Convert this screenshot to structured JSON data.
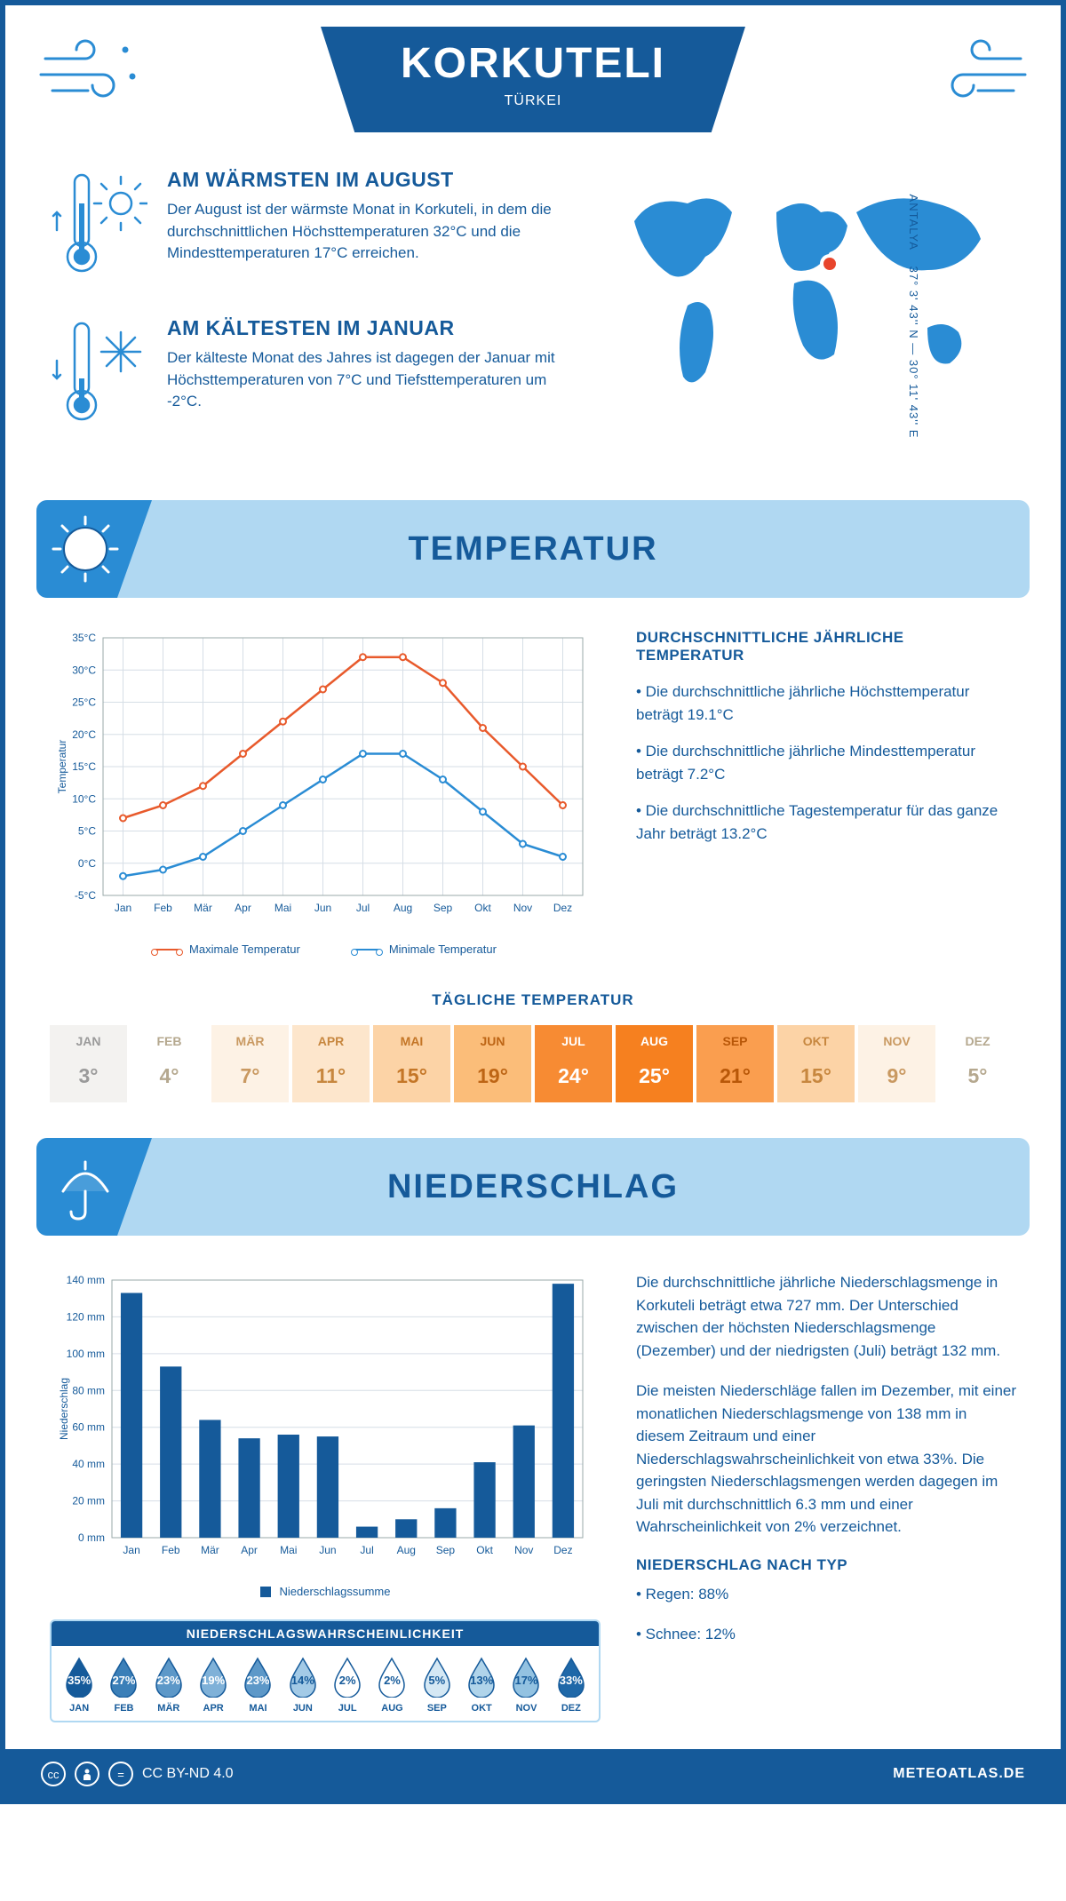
{
  "colors": {
    "primary": "#155a9a",
    "accent": "#2a8cd4",
    "light": "#b0d8f2",
    "max_line": "#e85a2c",
    "min_line": "#2a8cd4",
    "bg": "#ffffff",
    "grid": "#d6dee6"
  },
  "header": {
    "title": "KORKUTELI",
    "country": "TÜRKEI"
  },
  "intro": {
    "warm_title": "AM WÄRMSTEN IM AUGUST",
    "warm_text": "Der August ist der wärmste Monat in Korkuteli, in dem die durchschnittlichen Höchsttemperaturen 32°C und die Mindesttemperaturen 17°C erreichen.",
    "cold_title": "AM KÄLTESTEN IM JANUAR",
    "cold_text": "Der kälteste Monat des Jahres ist dagegen der Januar mit Höchsttemperaturen von 7°C und Tiefsttemperaturen um -2°C.",
    "coords": "37° 3' 43'' N — 30° 11' 43'' E",
    "region": "ANTALYA"
  },
  "temp_section": {
    "title": "TEMPERATUR",
    "info_title": "DURCHSCHNITTLICHE JÄHRLICHE TEMPERATUR",
    "bullet1": "• Die durchschnittliche jährliche Höchsttemperatur beträgt 19.1°C",
    "bullet2": "• Die durchschnittliche jährliche Mindesttemperatur beträgt 7.2°C",
    "bullet3": "• Die durchschnittliche Tagestemperatur für das ganze Jahr beträgt 13.2°C",
    "legend_max": "Maximale Temperatur",
    "legend_min": "Minimale Temperatur",
    "chart": {
      "type": "line",
      "y_label": "Temperatur",
      "y_min": -5,
      "y_max": 35,
      "y_step": 5,
      "months": [
        "Jan",
        "Feb",
        "Mär",
        "Apr",
        "Mai",
        "Jun",
        "Jul",
        "Aug",
        "Sep",
        "Okt",
        "Nov",
        "Dez"
      ],
      "max_series": [
        7,
        9,
        12,
        17,
        22,
        27,
        32,
        32,
        28,
        21,
        15,
        9
      ],
      "min_series": [
        -2,
        -1,
        1,
        5,
        9,
        13,
        17,
        17,
        13,
        8,
        3,
        1
      ]
    },
    "daily_title": "TÄGLICHE TEMPERATUR",
    "daily": {
      "months": [
        "JAN",
        "FEB",
        "MÄR",
        "APR",
        "MAI",
        "JUN",
        "JUL",
        "AUG",
        "SEP",
        "OKT",
        "NOV",
        "DEZ"
      ],
      "values": [
        "3°",
        "4°",
        "7°",
        "11°",
        "15°",
        "19°",
        "24°",
        "25°",
        "21°",
        "15°",
        "9°",
        "5°"
      ],
      "bg": [
        "#f3f2f0",
        "#ffffff",
        "#fdf2e5",
        "#fde6cc",
        "#fcd3a6",
        "#fbbd79",
        "#f78b33",
        "#f6801f",
        "#fa9e4f",
        "#fcd3a6",
        "#fdf2e5",
        "#ffffff"
      ],
      "fg": [
        "#9a9a9a",
        "#b5a88f",
        "#c99961",
        "#c7873f",
        "#c47627",
        "#bd6515",
        "#ffffff",
        "#ffffff",
        "#b85708",
        "#c7873f",
        "#c99961",
        "#b5a88f"
      ]
    }
  },
  "precip_section": {
    "title": "NIEDERSCHLAG",
    "para1": "Die durchschnittliche jährliche Niederschlagsmenge in Korkuteli beträgt etwa 727 mm. Der Unterschied zwischen der höchsten Niederschlagsmenge (Dezember) und der niedrigsten (Juli) beträgt 132 mm.",
    "para2": "Die meisten Niederschläge fallen im Dezember, mit einer monatlichen Niederschlagsmenge von 138 mm in diesem Zeitraum und einer Niederschlagswahrscheinlichkeit von etwa 33%. Die geringsten Niederschlagsmengen werden dagegen im Juli mit durchschnittlich 6.3 mm und einer Wahrscheinlichkeit von 2% verzeichnet.",
    "type_title": "NIEDERSCHLAG NACH TYP",
    "rain": "• Regen: 88%",
    "snow": "• Schnee: 12%",
    "chart": {
      "type": "bar",
      "y_label": "Niederschlag",
      "y_min": 0,
      "y_max": 140,
      "y_step": 20,
      "legend": "Niederschlagssumme",
      "months": [
        "Jan",
        "Feb",
        "Mär",
        "Apr",
        "Mai",
        "Jun",
        "Jul",
        "Aug",
        "Sep",
        "Okt",
        "Nov",
        "Dez"
      ],
      "values": [
        133,
        93,
        64,
        54,
        56,
        55,
        6,
        10,
        16,
        41,
        61,
        138
      ]
    },
    "prob_title": "NIEDERSCHLAGSWAHRSCHEINLICHKEIT",
    "prob": {
      "months": [
        "JAN",
        "FEB",
        "MÄR",
        "APR",
        "MAI",
        "JUN",
        "JUL",
        "AUG",
        "SEP",
        "OKT",
        "NOV",
        "DEZ"
      ],
      "values": [
        "35%",
        "27%",
        "23%",
        "19%",
        "23%",
        "14%",
        "2%",
        "2%",
        "5%",
        "13%",
        "17%",
        "33%"
      ],
      "fill": [
        "#155a9a",
        "#3b7fb8",
        "#5d98c8",
        "#7fb1d8",
        "#5d98c8",
        "#a3cae6",
        "#ffffff",
        "#ffffff",
        "#d5e8f4",
        "#b0d4ea",
        "#93c2e1",
        "#1f68a8"
      ],
      "text": [
        "#ffffff",
        "#ffffff",
        "#ffffff",
        "#ffffff",
        "#ffffff",
        "#155a9a",
        "#155a9a",
        "#155a9a",
        "#155a9a",
        "#155a9a",
        "#155a9a",
        "#ffffff"
      ]
    }
  },
  "footer": {
    "license": "CC BY-ND 4.0",
    "site": "METEOATLAS.DE"
  }
}
